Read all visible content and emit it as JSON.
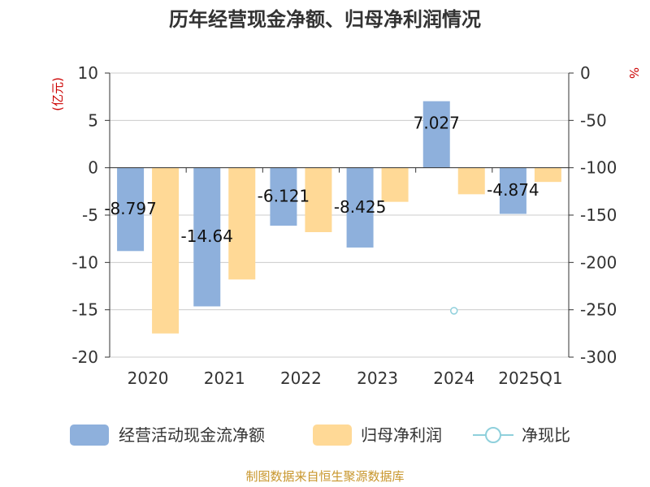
{
  "chart_data": {
    "type": "bar",
    "title": "历年经营现金净额、归母净利润情况",
    "categories": [
      "2020",
      "2021",
      "2022",
      "2023",
      "2024",
      "2025Q1"
    ],
    "series": [
      {
        "name": "经营活动现金流净额",
        "axis": "left",
        "color": "#8eb0dc",
        "values": [
          -8.797,
          -14.64,
          -6.121,
          -8.425,
          7.027,
          -4.874
        ],
        "labels": [
          "-8.797",
          "-14.64",
          "-6.121",
          "-8.425",
          "7.027",
          "-4.874"
        ]
      },
      {
        "name": "归母净利润",
        "axis": "left",
        "color": "#ffd996",
        "values": [
          -17.5,
          -11.8,
          -6.8,
          -3.6,
          -2.8,
          -1.5
        ]
      },
      {
        "name": "净现比",
        "axis": "right",
        "type": "scatter",
        "color": "#8fd0dc",
        "values": [
          null,
          null,
          null,
          null,
          -251,
          null
        ]
      }
    ],
    "ylabel": "(亿元)",
    "ylim": [
      -20,
      10
    ],
    "yticks": [
      10,
      5,
      0,
      -5,
      -10,
      -15,
      -20
    ],
    "y2label": "%",
    "y2lim": [
      -300,
      0
    ],
    "y2ticks": [
      0,
      -50,
      -100,
      -150,
      -200,
      -250,
      -300
    ],
    "grid": true,
    "legend": "bottom"
  },
  "source": "制图数据来自恒生聚源数据库"
}
